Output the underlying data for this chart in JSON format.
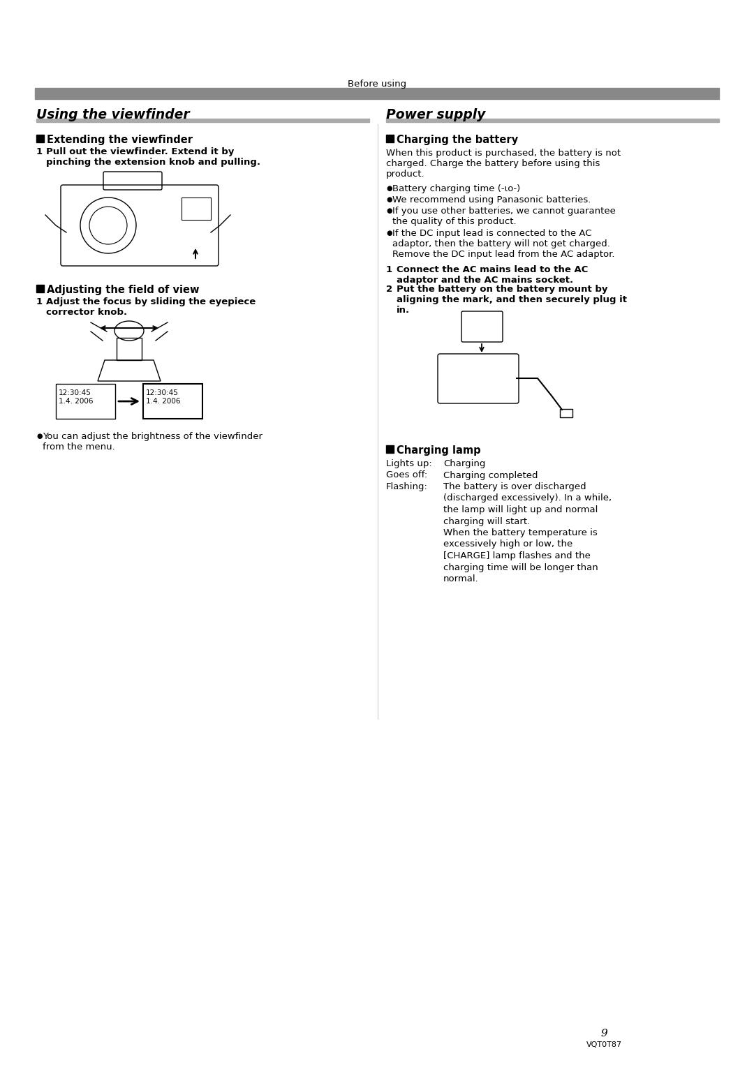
{
  "bg_color": "#ffffff",
  "text_color": "#000000",
  "page_number": "9",
  "model_number": "VQT0T87",
  "header_text": "Before using",
  "left_title": "Using the viewfinder",
  "right_title": "Power supply",
  "left_section1_heading": "Extending the viewfinder",
  "left_section1_step1_bold": "Pull out the viewfinder. Extend it by\npinching the extension knob and pulling.",
  "left_section2_heading": "Adjusting the field of view",
  "left_section2_step1_bold": "Adjust the focus by sliding the eyepiece\ncorrector knob.",
  "left_bullet1": "You can adjust the brightness of the viewfinder\nfrom the menu.",
  "right_section1_heading": "Charging the battery",
  "right_section1_body": "When this product is purchased, the battery is not\ncharged. Charge the battery before using this\nproduct.",
  "right_bullet1": "Battery charging time (-ιο-)",
  "right_bullet2": "We recommend using Panasonic batteries.",
  "right_bullet3": "If you use other batteries, we cannot guarantee\nthe quality of this product.",
  "right_bullet4": "If the DC input lead is connected to the AC\nadaptor, then the battery will not get charged.\nRemove the DC input lead from the AC adaptor.",
  "right_step1_bold": "Connect the AC mains lead to the AC\nadaptor and the AC mains socket.",
  "right_step2_bold": "Put the battery on the battery mount by\naligning the mark, and then securely plug it\nin.",
  "right_section2_heading": "Charging lamp",
  "charging_lamp_lights_up": "Charging",
  "charging_lamp_goes_off": "Charging completed",
  "charging_lamp_flashing_line1": "The battery is over discharged",
  "charging_lamp_flashing_line2": "(discharged excessively). In a while,",
  "charging_lamp_flashing_line3": "the lamp will light up and normal",
  "charging_lamp_flashing_line4": "charging will start.",
  "charging_lamp_flashing_line5": "When the battery temperature is",
  "charging_lamp_flashing_line6": "excessively high or low, the",
  "charging_lamp_flashing_line7": "[CHARGE] lamp flashes and the",
  "charging_lamp_flashing_line8": "charging time will be longer than",
  "charging_lamp_flashing_line9": "normal.",
  "display_text1": "12:30:45\n1.4. 2006",
  "display_text2": "12:30:45\n1.4. 2006",
  "gray_bar_color": "#888888",
  "light_gray_color": "#aaaaaa",
  "divider_color": "#999999"
}
